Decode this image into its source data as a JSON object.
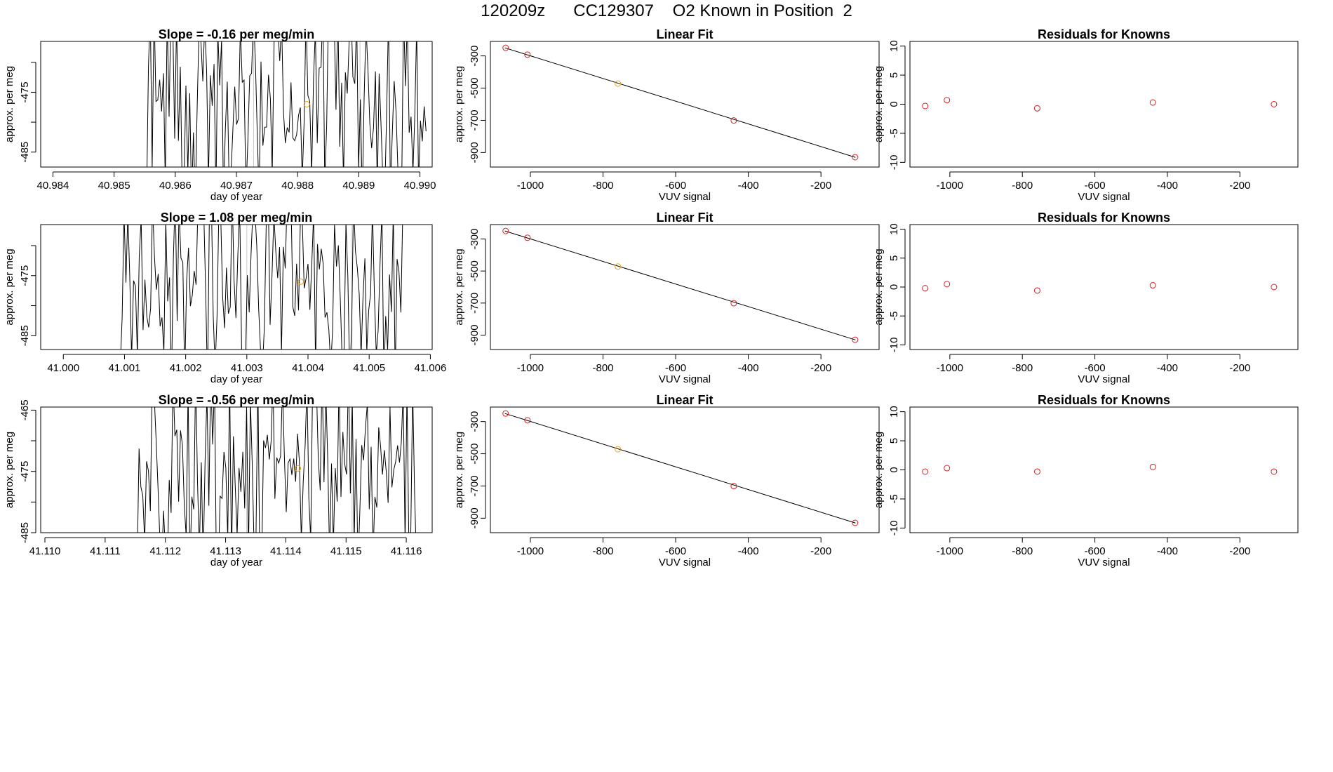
{
  "page": {
    "title": "120209z      CC129307    O2 Known in Position  2"
  },
  "colors": {
    "line": "#000000",
    "point_red": "#d22020",
    "point_orange": "#e8a020",
    "vline": "#c8c8c8"
  },
  "chart_data": [
    {
      "type": "line",
      "row": 1,
      "title": "Slope =  -0.16  per meg/min",
      "xlabel": "day of year",
      "ylabel": "approx. per meg",
      "xlim": [
        40.9838,
        40.9902
      ],
      "ylim": [
        -487.5,
        -466.5
      ],
      "xticks": [
        40.984,
        40.985,
        40.986,
        40.987,
        40.988,
        40.989,
        40.99
      ],
      "xtick_labels": [
        "40.984",
        "40.985",
        "40.986",
        "40.987",
        "40.988",
        "40.989",
        "40.990"
      ],
      "yticks": [
        -485,
        -480,
        -475,
        -470
      ],
      "ytick_labels": [
        "-485",
        "",
        "-475",
        ""
      ],
      "series_start": 40.9855,
      "series_end": 40.9901,
      "vlines": [
        40.98728,
        40.98902
      ],
      "point": {
        "x": 40.98815,
        "y": -477.0
      },
      "seed": 7
    },
    {
      "type": "line",
      "row": 2,
      "title": "Slope =  1.08  per meg/min",
      "xlabel": "day of year",
      "ylabel": "approx. per meg",
      "xlim": [
        40.99963,
        41.00603
      ],
      "ylim": [
        -487.3,
        -466.5
      ],
      "xticks": [
        41.0,
        41.001,
        41.002,
        41.003,
        41.004,
        41.005,
        41.006
      ],
      "xtick_labels": [
        "41.000",
        "41.001",
        "41.002",
        "41.003",
        "41.004",
        "41.005",
        "41.006"
      ],
      "yticks": [
        -485,
        -480,
        -475,
        -470
      ],
      "ytick_labels": [
        "-485",
        "",
        "-475",
        ""
      ],
      "series_start": 41.0009,
      "series_end": 41.00555,
      "vlines": [
        41.003,
        41.00472
      ],
      "point": {
        "x": 41.00388,
        "y": -476.0
      },
      "seed": 13
    },
    {
      "type": "line",
      "row": 3,
      "title": "Slope =  -0.56  per meg/min",
      "xlabel": "day of year",
      "ylabel": "approx. per meg",
      "xlim": [
        41.10993,
        41.11643
      ],
      "ylim": [
        -485.0,
        -464.5
      ],
      "xticks": [
        41.11,
        41.111,
        41.112,
        41.113,
        41.114,
        41.115,
        41.116
      ],
      "xtick_labels": [
        "41.110",
        "41.111",
        "41.112",
        "41.113",
        "41.114",
        "41.115",
        "41.116"
      ],
      "yticks": [
        -485,
        -480,
        -475,
        -470,
        -465
      ],
      "ytick_labels": [
        "-485",
        "",
        "-475",
        "",
        "-465"
      ],
      "series_start": 41.1115,
      "series_end": 41.1162,
      "vlines": [
        41.11335,
        41.1151
      ],
      "point": {
        "x": 41.1142,
        "y": -474.5
      },
      "seed": 29
    },
    {
      "type": "scatter",
      "row": 1,
      "title": "Linear Fit",
      "xlabel": "VUV signal",
      "ylabel": "approx. per meg",
      "xlim": [
        -1110,
        -40
      ],
      "ylim": [
        -990,
        -210
      ],
      "xticks": [
        -1000,
        -800,
        -600,
        -400,
        -200
      ],
      "xtick_labels": [
        "-1000",
        "-800",
        "-600",
        "-400",
        "-200"
      ],
      "yticks": [
        -900,
        -700,
        -500,
        -300
      ],
      "ytick_labels": [
        "-900",
        "-700",
        "-500",
        "-300"
      ],
      "fit": {
        "x1": -1070,
        "y1": -250,
        "x2": -105,
        "y2": -930
      },
      "points": [
        {
          "x": -1068,
          "y": -250,
          "color": "red"
        },
        {
          "x": -1008,
          "y": -292,
          "color": "red"
        },
        {
          "x": -759,
          "y": -472,
          "color": "orange"
        },
        {
          "x": -440,
          "y": -701,
          "color": "red"
        },
        {
          "x": -106,
          "y": -929,
          "color": "red"
        }
      ]
    },
    {
      "type": "scatter",
      "row": 2,
      "title": "Linear Fit",
      "xlabel": "VUV signal",
      "ylabel": "approx. per meg",
      "xlim": [
        -1110,
        -40
      ],
      "ylim": [
        -990,
        -210
      ],
      "xticks": [
        -1000,
        -800,
        -600,
        -400,
        -200
      ],
      "xtick_labels": [
        "-1000",
        "-800",
        "-600",
        "-400",
        "-200"
      ],
      "yticks": [
        -900,
        -700,
        -500,
        -300
      ],
      "ytick_labels": [
        "-900",
        "-700",
        "-500",
        "-300"
      ],
      "fit": {
        "x1": -1070,
        "y1": -250,
        "x2": -105,
        "y2": -930
      },
      "points": [
        {
          "x": -1068,
          "y": -250,
          "color": "red"
        },
        {
          "x": -1008,
          "y": -292,
          "color": "red"
        },
        {
          "x": -759,
          "y": -472,
          "color": "orange"
        },
        {
          "x": -440,
          "y": -701,
          "color": "red"
        },
        {
          "x": -106,
          "y": -929,
          "color": "red"
        }
      ]
    },
    {
      "type": "scatter",
      "row": 3,
      "title": "Linear Fit",
      "xlabel": "VUV signal",
      "ylabel": "approx. per meg",
      "xlim": [
        -1110,
        -40
      ],
      "ylim": [
        -990,
        -210
      ],
      "xticks": [
        -1000,
        -800,
        -600,
        -400,
        -200
      ],
      "xtick_labels": [
        "-1000",
        "-800",
        "-600",
        "-400",
        "-200"
      ],
      "yticks": [
        -900,
        -700,
        -500,
        -300
      ],
      "ytick_labels": [
        "-900",
        "-700",
        "-500",
        "-300"
      ],
      "fit": {
        "x1": -1070,
        "y1": -250,
        "x2": -105,
        "y2": -930
      },
      "points": [
        {
          "x": -1068,
          "y": -250,
          "color": "red"
        },
        {
          "x": -1008,
          "y": -292,
          "color": "red"
        },
        {
          "x": -759,
          "y": -472,
          "color": "orange"
        },
        {
          "x": -440,
          "y": -701,
          "color": "red"
        },
        {
          "x": -106,
          "y": -929,
          "color": "red"
        }
      ]
    },
    {
      "type": "scatter",
      "row": 1,
      "title": "Residuals for Knowns",
      "xlabel": "VUV signal",
      "ylabel": "approx. per meg",
      "xlim": [
        -1110,
        -40
      ],
      "ylim": [
        -10.8,
        10.8
      ],
      "xticks": [
        -1000,
        -800,
        -600,
        -400,
        -200
      ],
      "xtick_labels": [
        "-1000",
        "-800",
        "-600",
        "-400",
        "-200"
      ],
      "yticks": [
        -10,
        -5,
        0,
        5,
        10
      ],
      "ytick_labels": [
        "-10",
        "-5",
        "0",
        "5",
        "10"
      ],
      "points": [
        {
          "x": -1068,
          "y": -0.3,
          "color": "red"
        },
        {
          "x": -1008,
          "y": 0.7,
          "color": "red"
        },
        {
          "x": -759,
          "y": -0.7,
          "color": "red"
        },
        {
          "x": -440,
          "y": 0.3,
          "color": "red"
        },
        {
          "x": -106,
          "y": 0.0,
          "color": "red"
        }
      ]
    },
    {
      "type": "scatter",
      "row": 2,
      "title": "Residuals for Knowns",
      "xlabel": "VUV signal",
      "ylabel": "approx. per meg",
      "xlim": [
        -1110,
        -40
      ],
      "ylim": [
        -10.8,
        10.8
      ],
      "xticks": [
        -1000,
        -800,
        -600,
        -400,
        -200
      ],
      "xtick_labels": [
        "-1000",
        "-800",
        "-600",
        "-400",
        "-200"
      ],
      "yticks": [
        -10,
        -5,
        0,
        5,
        10
      ],
      "ytick_labels": [
        "-10",
        "-5",
        "0",
        "5",
        "10"
      ],
      "points": [
        {
          "x": -1068,
          "y": -0.2,
          "color": "red"
        },
        {
          "x": -1008,
          "y": 0.5,
          "color": "red"
        },
        {
          "x": -759,
          "y": -0.6,
          "color": "red"
        },
        {
          "x": -440,
          "y": 0.3,
          "color": "red"
        },
        {
          "x": -106,
          "y": 0.0,
          "color": "red"
        }
      ]
    },
    {
      "type": "scatter",
      "row": 3,
      "title": "Residuals for Knowns",
      "xlabel": "VUV signal",
      "ylabel": "approx. per meg",
      "xlim": [
        -1110,
        -40
      ],
      "ylim": [
        -10.8,
        10.8
      ],
      "xticks": [
        -1000,
        -800,
        -600,
        -400,
        -200
      ],
      "xtick_labels": [
        "-1000",
        "-800",
        "-600",
        "-400",
        "-200"
      ],
      "yticks": [
        -10,
        -5,
        0,
        5,
        10
      ],
      "ytick_labels": [
        "-10",
        "-5",
        "0",
        "5",
        "10"
      ],
      "points": [
        {
          "x": -1068,
          "y": -0.3,
          "color": "red"
        },
        {
          "x": -1008,
          "y": 0.3,
          "color": "red"
        },
        {
          "x": -759,
          "y": -0.3,
          "color": "red"
        },
        {
          "x": -440,
          "y": 0.5,
          "color": "red"
        },
        {
          "x": -106,
          "y": -0.3,
          "color": "red"
        }
      ]
    }
  ]
}
